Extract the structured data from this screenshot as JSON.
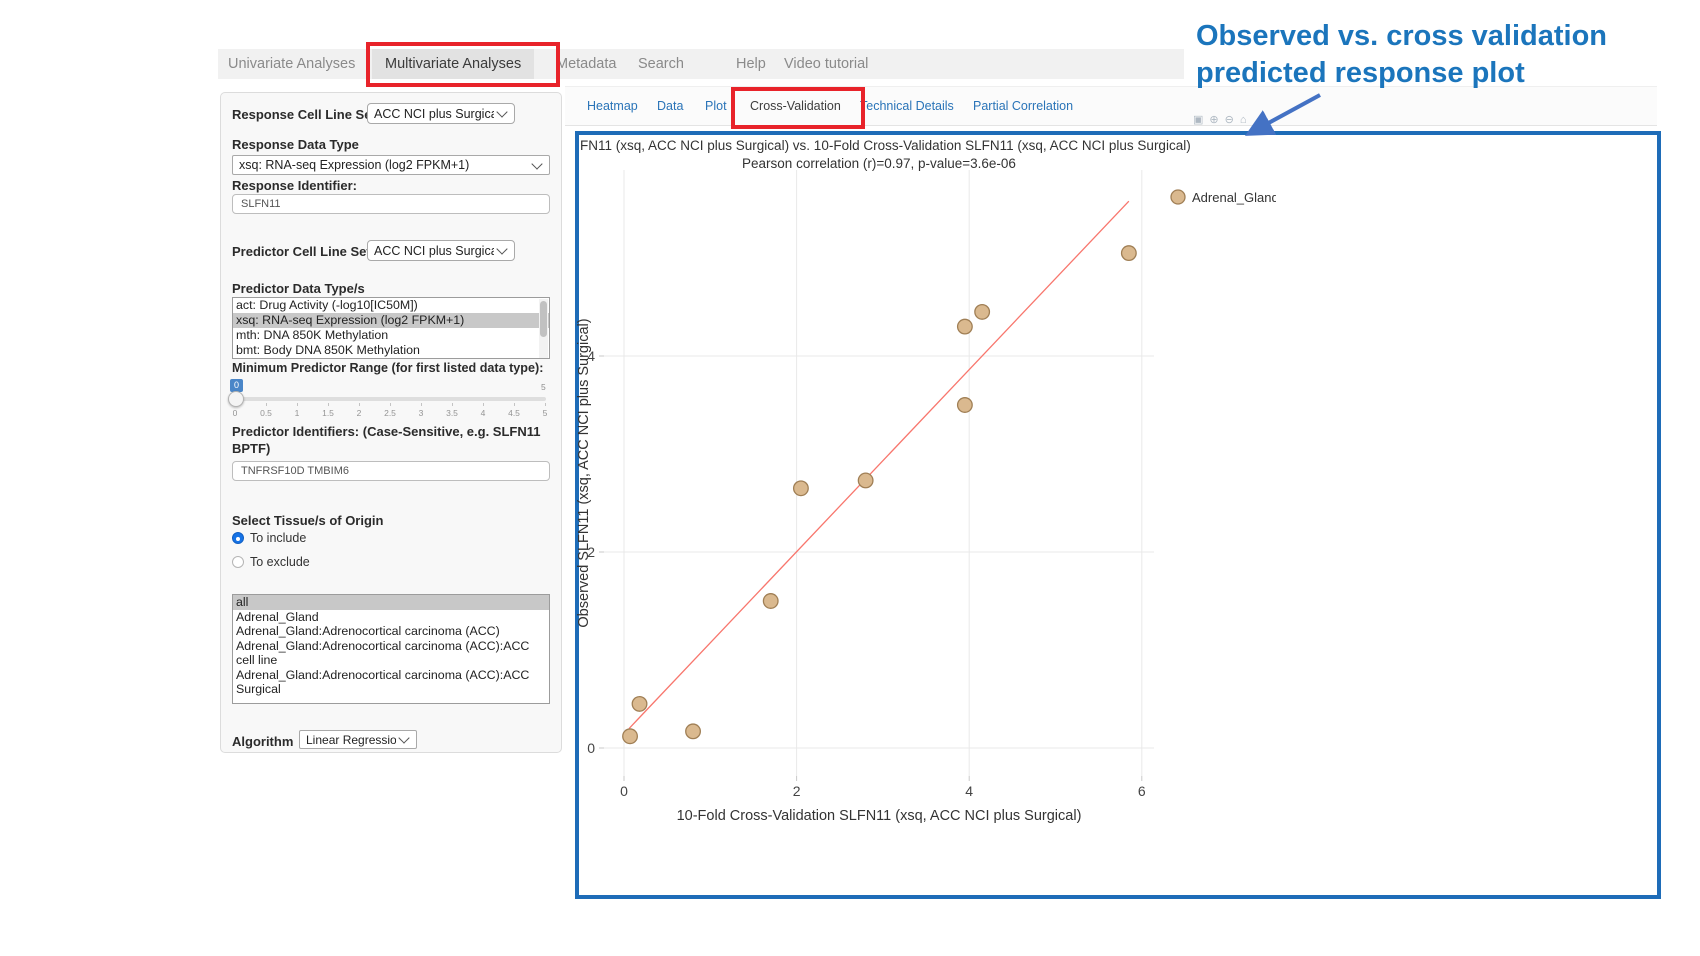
{
  "nav": {
    "items": [
      {
        "label": "Univariate Analyses",
        "active": false
      },
      {
        "label": "Multivariate Analyses",
        "active": true
      },
      {
        "label": "Metadata",
        "active": false
      },
      {
        "label": "Search",
        "active": false
      },
      {
        "label": "Help",
        "active": false
      },
      {
        "label": "Video tutorial",
        "active": false
      }
    ]
  },
  "tabs": {
    "items": [
      {
        "label": "Heatmap",
        "active": false
      },
      {
        "label": "Data",
        "active": false
      },
      {
        "label": "Plot",
        "active": false
      },
      {
        "label": "Cross-Validation",
        "active": true
      },
      {
        "label": "Technical Details",
        "active": false
      },
      {
        "label": "Partial Correlation",
        "active": false
      }
    ]
  },
  "sidebar": {
    "response_cell_line_set": {
      "label": "Response Cell Line Set",
      "value": "ACC NCI plus Surgical"
    },
    "response_data_type": {
      "label": "Response Data Type",
      "value": "xsq: RNA-seq Expression (log2 FPKM+1)"
    },
    "response_identifier": {
      "label": "Response Identifier:",
      "value": "SLFN11"
    },
    "predictor_cell_line_set": {
      "label": "Predictor Cell Line Set",
      "value": "ACC NCI plus Surgical"
    },
    "predictor_data_types": {
      "label": "Predictor Data Type/s",
      "options": [
        "act: Drug Activity (-log10[IC50M])",
        "xsq: RNA-seq Expression (log2 FPKM+1)",
        "mth: DNA 850K Methylation",
        "bmt: Body DNA 850K Methylation"
      ],
      "selected_index": 1
    },
    "min_predictor_range": {
      "label": "Minimum Predictor Range (for first listed data type):",
      "value": "0",
      "max_label": "5",
      "tick_labels": [
        "0",
        "0.5",
        "1",
        "1.5",
        "2",
        "2.5",
        "3",
        "3.5",
        "4",
        "4.5",
        "5"
      ]
    },
    "predictor_identifiers": {
      "label": "Predictor Identifiers: (Case-Sensitive, e.g. SLFN11 BPTF)",
      "value": "TNFRSF10D TMBIM6"
    },
    "tissue_origin": {
      "label": "Select Tissue/s of Origin",
      "radios": [
        {
          "label": "To include",
          "selected": true
        },
        {
          "label": "To exclude",
          "selected": false
        }
      ]
    },
    "tissue_list": {
      "options": [
        "all",
        "Adrenal_Gland",
        "Adrenal_Gland:Adrenocortical carcinoma (ACC)",
        "Adrenal_Gland:Adrenocortical carcinoma (ACC):ACC cell line",
        "Adrenal_Gland:Adrenocortical carcinoma (ACC):ACC Surgical"
      ],
      "selected_index": 0
    },
    "algorithm": {
      "label": "Algorithm",
      "value": "Linear Regression"
    }
  },
  "annotation": {
    "line1": "Observed vs. cross validation",
    "line2": "predicted response plot",
    "text_color": "#1b75bc",
    "arrow_color": "#4472c4"
  },
  "modebar": {
    "icons": [
      "camera-icon",
      "zoom-in-icon",
      "zoom-out-icon",
      "home-icon"
    ]
  },
  "chart_data": {
    "type": "scatter",
    "title": "FN11 (xsq, ACC NCI plus Surgical) vs. 10-Fold Cross-Validation SLFN11 (xsq, ACC NCI plus Surgical)",
    "subtitle": "Pearson correlation (r)=0.97, p-value=3.6e-06",
    "xlabel": "10-Fold Cross-Validation SLFN11 (xsq, ACC NCI plus Surgical)",
    "ylabel": "Observed SLFN11 (xsq, ACC NCI plus Surgical)",
    "xlim": [
      -0.25,
      6.2
    ],
    "ylim": [
      -0.3,
      5.9
    ],
    "xticks": [
      0,
      2,
      4,
      6
    ],
    "yticks": [
      0,
      2,
      4
    ],
    "grid": true,
    "legend_position": "top-right-outside",
    "legend": [
      {
        "label": "Adrenal_Gland"
      }
    ],
    "series": [
      {
        "name": "Adrenal_Gland",
        "points": [
          [
            0.07,
            0.12
          ],
          [
            0.18,
            0.45
          ],
          [
            0.8,
            0.17
          ],
          [
            1.7,
            1.5
          ],
          [
            2.05,
            2.65
          ],
          [
            2.8,
            2.73
          ],
          [
            3.95,
            3.5
          ],
          [
            3.95,
            4.3
          ],
          [
            4.15,
            4.45
          ],
          [
            5.85,
            5.05
          ]
        ]
      }
    ],
    "regression_line": {
      "x1": 0.06,
      "y1": 0.2,
      "x2": 5.85,
      "y2": 5.58
    },
    "colors": {
      "marker_fill": "#dab98f",
      "marker_stroke": "#a07f55",
      "line": "#f8766d",
      "grid": "#e9e9e9",
      "tick_text": "#444444",
      "panel_border": "#1e6cb8"
    }
  }
}
